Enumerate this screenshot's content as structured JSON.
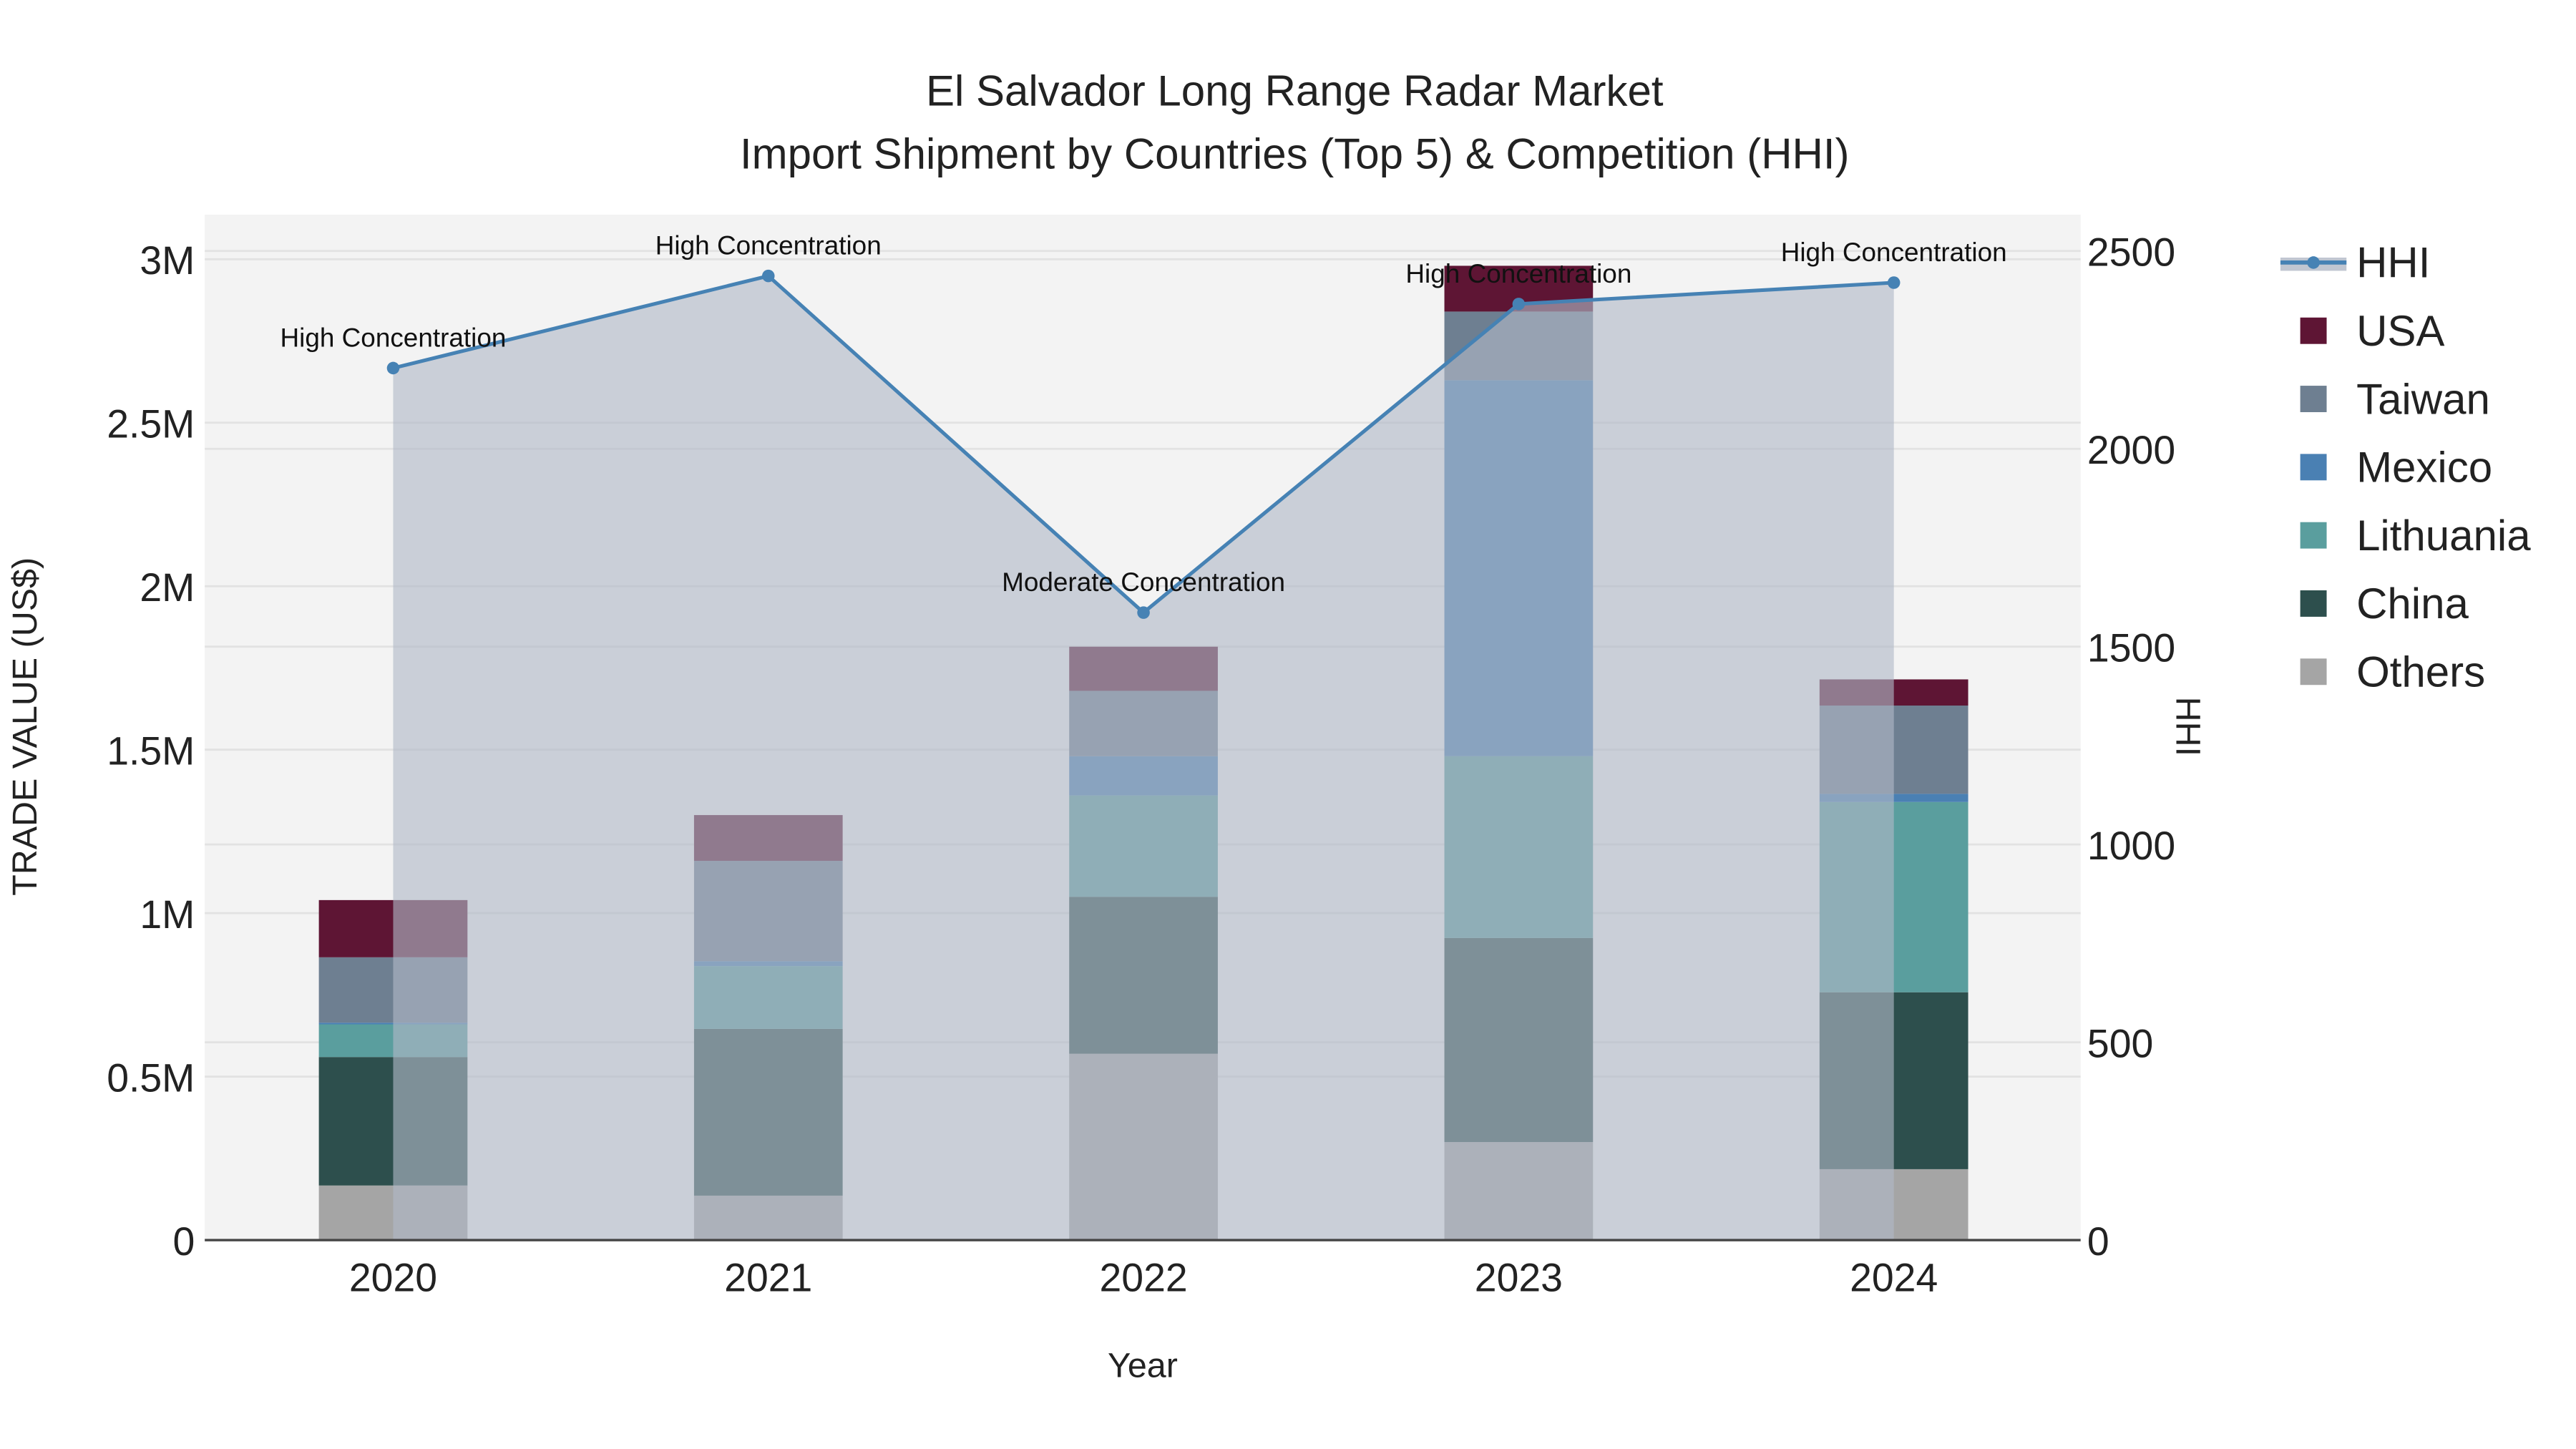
{
  "chart_data": {
    "type": "bar",
    "title": "El Salvador Long Range Radar Market",
    "subtitle": "Import Shipment by Countries (Top 5) & Competition (HHI)",
    "xlabel": "Year",
    "ylabel": "TRADE VALUE (US$)",
    "y2label": "HHI",
    "categories": [
      "2020",
      "2021",
      "2022",
      "2023",
      "2024"
    ],
    "stacked": true,
    "ylim": [
      0,
      3130000
    ],
    "y2lim": [
      0,
      2600
    ],
    "yticks": [
      {
        "v": 0,
        "label": "0"
      },
      {
        "v": 500000,
        "label": "0.5M"
      },
      {
        "v": 1000000,
        "label": "1M"
      },
      {
        "v": 1500000,
        "label": "1.5M"
      },
      {
        "v": 2000000,
        "label": "2M"
      },
      {
        "v": 2500000,
        "label": "2.5M"
      },
      {
        "v": 3000000,
        "label": "3M"
      }
    ],
    "y2ticks": [
      {
        "v": 0,
        "label": "0"
      },
      {
        "v": 500,
        "label": "500"
      },
      {
        "v": 1000,
        "label": "1000"
      },
      {
        "v": 1500,
        "label": "1500"
      },
      {
        "v": 2000,
        "label": "2000"
      },
      {
        "v": 2500,
        "label": "2500"
      }
    ],
    "series": [
      {
        "name": "Others",
        "color": "#a5a5a5",
        "values": [
          167000,
          136000,
          570000,
          300000,
          217000
        ]
      },
      {
        "name": "China",
        "color": "#2d4f4d",
        "values": [
          393000,
          510000,
          480000,
          624000,
          541000
        ]
      },
      {
        "name": "Lithuania",
        "color": "#5a9e9e",
        "values": [
          100000,
          192000,
          310000,
          556000,
          582000
        ]
      },
      {
        "name": "Mexico",
        "color": "#4a80b3",
        "values": [
          5000,
          15000,
          120000,
          1150000,
          25000
        ]
      },
      {
        "name": "Taiwan",
        "color": "#6e7f91",
        "values": [
          200000,
          307000,
          200000,
          210000,
          270000
        ]
      },
      {
        "name": "USA",
        "color": "#5e1534",
        "values": [
          175000,
          140000,
          135000,
          140000,
          80000
        ]
      }
    ],
    "hhi": {
      "name": "HHI",
      "color": "#4682b4",
      "values": [
        2204,
        2437,
        1586,
        2366,
        2420
      ],
      "annotations": [
        "High Concentration",
        "High Concentration",
        "Moderate Concentration",
        "High Concentration",
        "High Concentration"
      ]
    },
    "legend_order": [
      "HHI",
      "USA",
      "Taiwan",
      "Mexico",
      "Lithuania",
      "China",
      "Others"
    ],
    "legend_position": "right",
    "grid": true
  }
}
